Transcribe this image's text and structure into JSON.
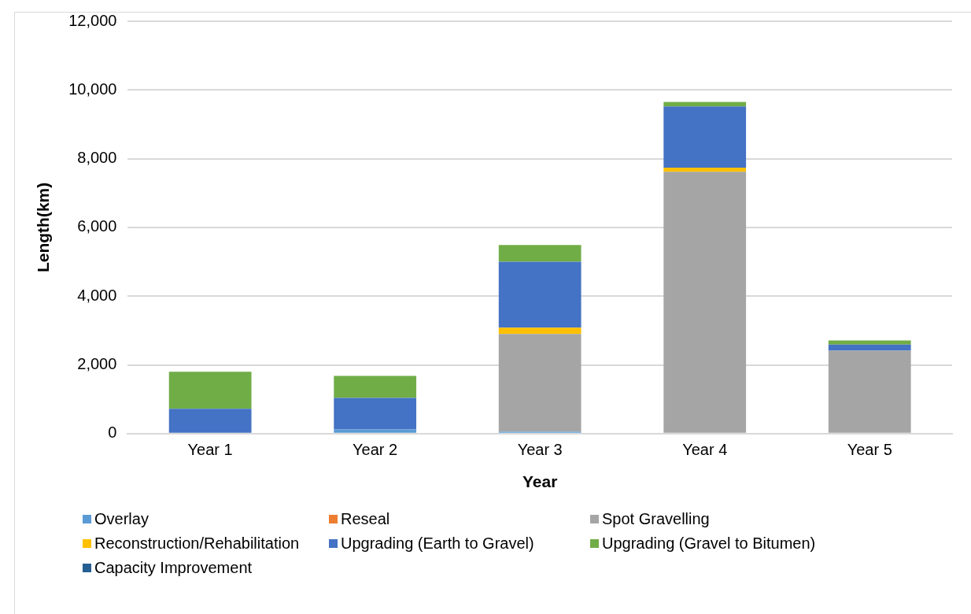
{
  "chart_data": {
    "type": "bar",
    "stacked": true,
    "xlabel": "Year",
    "ylabel": "Length(km)",
    "categories": [
      "Year 1",
      "Year 2",
      "Year 3",
      "Year 4",
      "Year 5"
    ],
    "series": [
      {
        "name": "Overlay",
        "color": "#5b9bd5",
        "values": [
          0,
          120,
          50,
          0,
          0
        ]
      },
      {
        "name": "Reseal",
        "color": "#ed7d31",
        "values": [
          0,
          0,
          0,
          0,
          0
        ]
      },
      {
        "name": "Spot Gravelling",
        "color": "#a5a5a5",
        "values": [
          0,
          0,
          2850,
          7620,
          2410
        ]
      },
      {
        "name": "Reconstruction/Rehabilitation",
        "color": "#ffc000",
        "values": [
          0,
          0,
          180,
          120,
          0
        ]
      },
      {
        "name": "Upgrading (Earth to Gravel)",
        "color": "#4472c4",
        "values": [
          720,
          920,
          1920,
          1780,
          180
        ]
      },
      {
        "name": "Upgrading (Gravel to Bitumen)",
        "color": "#70ad47",
        "values": [
          1080,
          640,
          490,
          130,
          120
        ]
      },
      {
        "name": "Capacity Improvement",
        "color": "#255e91",
        "values": [
          0,
          0,
          0,
          0,
          0
        ]
      }
    ],
    "ylim": [
      0,
      12000
    ],
    "yticks": [
      {
        "value": 0,
        "label": "0"
      },
      {
        "value": 2000,
        "label": "2,000"
      },
      {
        "value": 4000,
        "label": "4,000"
      },
      {
        "value": 6000,
        "label": "6,000"
      },
      {
        "value": 8000,
        "label": "8,000"
      },
      {
        "value": 10000,
        "label": "10,000"
      },
      {
        "value": 12000,
        "label": "12,000"
      }
    ],
    "grid": "y",
    "legend": "bottom"
  }
}
